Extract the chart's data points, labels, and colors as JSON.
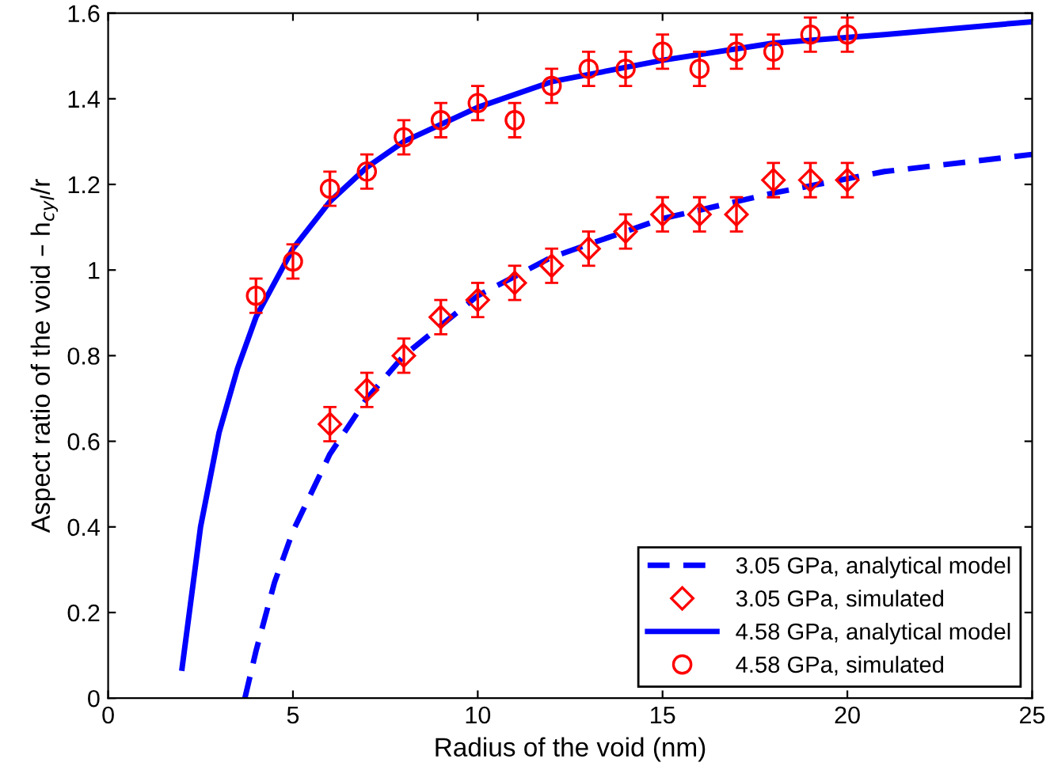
{
  "chart_data": {
    "type": "line",
    "xlabel": "Radius of the void (nm)",
    "ylabel": "Aspect ratio of the void – h$_{cyl}$/r",
    "xlim": [
      0,
      25
    ],
    "xticks": [
      0,
      5,
      10,
      15,
      20,
      25
    ],
    "ylim": [
      0,
      1.6
    ],
    "yticks": [
      0,
      0.2,
      0.4,
      0.6,
      0.8,
      1,
      1.2,
      1.4,
      1.6
    ],
    "grid": false,
    "legend": "bottom right",
    "series": [
      {
        "name": "3.05 GPa, analytical model",
        "line_style": "dashed",
        "marker": "none",
        "color": "#0000ff",
        "x": [
          3.7,
          4,
          4.5,
          5,
          6,
          7,
          8,
          10,
          12,
          15,
          18,
          21,
          25
        ],
        "values": [
          0.0,
          0.11,
          0.27,
          0.39,
          0.57,
          0.7,
          0.8,
          0.94,
          1.03,
          1.12,
          1.18,
          1.23,
          1.27
        ]
      },
      {
        "name": "3.05 GPa, simulated",
        "type": "scatter",
        "marker": "diamond",
        "color": "#ff0000",
        "x": [
          6,
          7,
          8,
          9,
          10,
          11,
          12,
          13,
          14,
          15,
          16,
          17,
          18,
          19,
          20
        ],
        "values": [
          0.64,
          0.72,
          0.8,
          0.89,
          0.93,
          0.97,
          1.01,
          1.05,
          1.09,
          1.13,
          1.13,
          1.13,
          1.21,
          1.21,
          1.21
        ],
        "errors": [
          0.04,
          0.04,
          0.04,
          0.04,
          0.04,
          0.04,
          0.04,
          0.04,
          0.04,
          0.04,
          0.04,
          0.04,
          0.04,
          0.04,
          0.04
        ]
      },
      {
        "name": "4.58 GPa, analytical model",
        "line_style": "solid",
        "marker": "none",
        "color": "#0000ff",
        "x": [
          2,
          2.5,
          3,
          3.5,
          4,
          5,
          6,
          7,
          8,
          10,
          12,
          15,
          18,
          21,
          25
        ],
        "values": [
          0.07,
          0.4,
          0.62,
          0.77,
          0.89,
          1.05,
          1.16,
          1.24,
          1.3,
          1.38,
          1.44,
          1.49,
          1.53,
          1.55,
          1.58
        ]
      },
      {
        "name": "4.58 GPa, simulated",
        "type": "scatter",
        "marker": "circle",
        "color": "#ff0000",
        "x": [
          4,
          5,
          6,
          7,
          8,
          9,
          10,
          11,
          12,
          13,
          14,
          15,
          16,
          17,
          18,
          19,
          20
        ],
        "values": [
          0.94,
          1.02,
          1.19,
          1.23,
          1.31,
          1.35,
          1.39,
          1.35,
          1.43,
          1.47,
          1.47,
          1.51,
          1.47,
          1.51,
          1.51,
          1.55,
          1.55
        ],
        "errors": [
          0.04,
          0.04,
          0.04,
          0.04,
          0.04,
          0.04,
          0.04,
          0.04,
          0.04,
          0.04,
          0.04,
          0.04,
          0.04,
          0.04,
          0.04,
          0.04,
          0.04
        ]
      }
    ]
  }
}
